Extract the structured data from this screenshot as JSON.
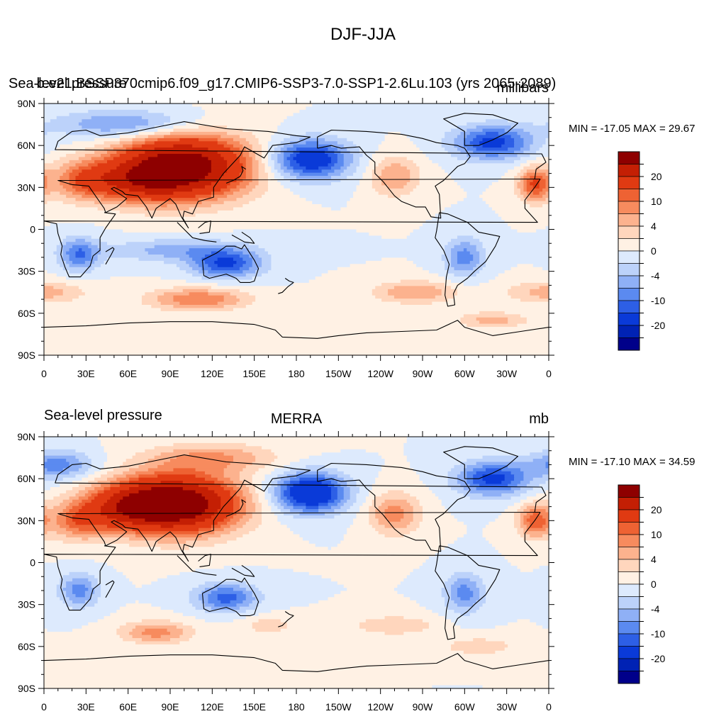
{
  "page": {
    "title": "DJF-JJA"
  },
  "colors": {
    "scale": [
      "#00008a",
      "#0022b4",
      "#0a3ad8",
      "#2d5fe6",
      "#5b8af0",
      "#8fb0f6",
      "#bcd2fa",
      "#ddeafd",
      "#fff1e4",
      "#ffd6bd",
      "#fcb28e",
      "#f78b5e",
      "#ee6233",
      "#e03a12",
      "#c41f04",
      "#8e0000"
    ],
    "coast": "#000000",
    "frame": "#000000"
  },
  "chart_data": [
    {
      "type": "heatmap",
      "id": "top",
      "title_left": "Sea-level pressure",
      "title_center": "b.e21.BSSP370cmip6.f09_g17.CMIP6-SSP3-7.0-SSP1-2.6Lu.103 (yrs 2065-2089)",
      "title_right": "millibars",
      "stats": "MIN = -17.05 MAX =  29.67",
      "min": -17.05,
      "max": 29.67,
      "xticks": [
        "0",
        "30E",
        "60E",
        "90E",
        "120E",
        "150E",
        "180",
        "150W",
        "120W",
        "90W",
        "60W",
        "30W",
        "0"
      ],
      "yticks": [
        "90N",
        "60N",
        "30N",
        "0",
        "30S",
        "60S",
        "90S"
      ],
      "colorbar_labels": [
        "20",
        "10",
        "4",
        "0",
        "-4",
        "-10",
        "-20"
      ],
      "levels": [
        -25,
        -20,
        -15,
        -10,
        -8,
        -6,
        -4,
        -2,
        0,
        2,
        4,
        6,
        8,
        10,
        15,
        20,
        25
      ],
      "features": [
        {
          "lon": 100,
          "lat": 45,
          "amp": 24,
          "sx": 45,
          "sy": 22
        },
        {
          "lon": 70,
          "lat": 35,
          "amp": 10,
          "sx": 30,
          "sy": 15
        },
        {
          "lon": 30,
          "lat": 35,
          "amp": 9,
          "sx": 25,
          "sy": 14
        },
        {
          "lon": -10,
          "lat": 32,
          "amp": 10,
          "sx": 12,
          "sy": 12
        },
        {
          "lon": -110,
          "lat": 38,
          "amp": 6,
          "sx": 18,
          "sy": 14
        },
        {
          "lon": -170,
          "lat": 50,
          "amp": -13,
          "sx": 28,
          "sy": 14
        },
        {
          "lon": -40,
          "lat": 62,
          "amp": -11,
          "sx": 28,
          "sy": 12
        },
        {
          "lon": 60,
          "lat": 75,
          "amp": -7,
          "sx": 50,
          "sy": 10
        },
        {
          "lon": 130,
          "lat": -25,
          "amp": -10,
          "sx": 25,
          "sy": 10
        },
        {
          "lon": 25,
          "lat": -18,
          "amp": -8,
          "sx": 14,
          "sy": 12
        },
        {
          "lon": -60,
          "lat": -20,
          "amp": -7,
          "sx": 14,
          "sy": 14
        },
        {
          "lon": 95,
          "lat": -15,
          "amp": -5,
          "sx": 50,
          "sy": 8
        },
        {
          "lon": 110,
          "lat": -50,
          "amp": 8,
          "sx": 35,
          "sy": 8
        },
        {
          "lon": -95,
          "lat": -45,
          "amp": 6,
          "sx": 30,
          "sy": 8
        },
        {
          "lon": 0,
          "lat": -45,
          "amp": 5,
          "sx": 30,
          "sy": 8
        },
        {
          "lon": -40,
          "lat": -65,
          "amp": 5,
          "sx": 25,
          "sy": 6
        }
      ]
    },
    {
      "type": "heatmap",
      "id": "bottom",
      "title_left": "Sea-level pressure",
      "title_center": "MERRA",
      "title_right": "mb",
      "stats": "MIN = -17.10 MAX =  34.59",
      "min": -17.1,
      "max": 34.59,
      "xticks": [
        "0",
        "30E",
        "60E",
        "90E",
        "120E",
        "150E",
        "180",
        "150W",
        "120W",
        "90W",
        "60W",
        "30W",
        "0"
      ],
      "yticks": [
        "90N",
        "60N",
        "30N",
        "0",
        "30S",
        "60S",
        "90S"
      ],
      "colorbar_labels": [
        "20",
        "10",
        "4",
        "0",
        "-4",
        "-10",
        "-20"
      ],
      "levels": [
        -25,
        -20,
        -15,
        -10,
        -8,
        -6,
        -4,
        -2,
        0,
        2,
        4,
        6,
        8,
        10,
        15,
        20,
        25
      ],
      "features": [
        {
          "lon": 95,
          "lat": 42,
          "amp": 26,
          "sx": 42,
          "sy": 20
        },
        {
          "lon": 60,
          "lat": 40,
          "amp": 11,
          "sx": 30,
          "sy": 15
        },
        {
          "lon": 25,
          "lat": 30,
          "amp": 8,
          "sx": 22,
          "sy": 14
        },
        {
          "lon": -10,
          "lat": 30,
          "amp": 9,
          "sx": 12,
          "sy": 12
        },
        {
          "lon": -110,
          "lat": 35,
          "amp": 7,
          "sx": 18,
          "sy": 15
        },
        {
          "lon": 120,
          "lat": 75,
          "amp": 6,
          "sx": 45,
          "sy": 10
        },
        {
          "lon": -170,
          "lat": 50,
          "amp": -15,
          "sx": 25,
          "sy": 14
        },
        {
          "lon": -40,
          "lat": 60,
          "amp": -11,
          "sx": 25,
          "sy": 12
        },
        {
          "lon": 10,
          "lat": 70,
          "amp": -7,
          "sx": 25,
          "sy": 10
        },
        {
          "lon": 130,
          "lat": -25,
          "amp": -9,
          "sx": 22,
          "sy": 10
        },
        {
          "lon": 25,
          "lat": -20,
          "amp": -7,
          "sx": 14,
          "sy": 12
        },
        {
          "lon": -60,
          "lat": -22,
          "amp": -7,
          "sx": 14,
          "sy": 14
        },
        {
          "lon": 80,
          "lat": -50,
          "amp": 7,
          "sx": 25,
          "sy": 8
        },
        {
          "lon": -110,
          "lat": -45,
          "amp": 4,
          "sx": 30,
          "sy": 7
        },
        {
          "lon": -50,
          "lat": -60,
          "amp": 4,
          "sx": 25,
          "sy": 6
        },
        {
          "lon": 160,
          "lat": -45,
          "amp": 3,
          "sx": 20,
          "sy": 7
        }
      ]
    }
  ]
}
